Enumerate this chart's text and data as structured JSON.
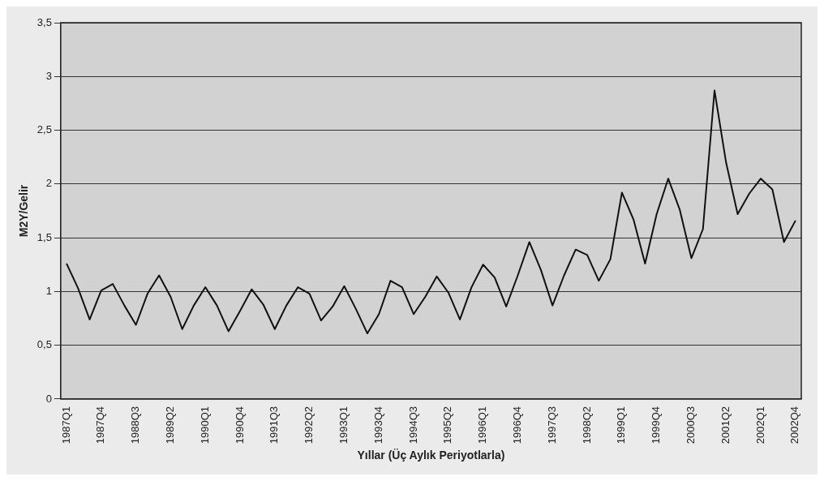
{
  "chart_data": {
    "type": "line",
    "xlabel": "Yıllar (Üç Aylık Periyotlarla)",
    "ylabel": "M2Y/Gelir",
    "categories": [
      "1987Q1",
      null,
      null,
      "1987Q4",
      null,
      null,
      "1988Q3",
      null,
      null,
      "1989Q2",
      null,
      null,
      "1990Q1",
      null,
      null,
      "1990Q4",
      null,
      null,
      "1991Q3",
      null,
      null,
      "1992Q2",
      null,
      null,
      "1993Q1",
      null,
      null,
      "1993Q4",
      null,
      null,
      "1994Q3",
      null,
      null,
      "1995Q2",
      null,
      null,
      "1996Q1",
      null,
      null,
      "1996Q4",
      null,
      null,
      "1997Q3",
      null,
      null,
      "1998Q2",
      null,
      null,
      "1999Q1",
      null,
      null,
      "1999Q4",
      null,
      null,
      "2000Q3",
      null,
      null,
      "2001Q2",
      null,
      null,
      "2002Q1",
      null,
      null,
      "2002Q4"
    ],
    "series": [
      {
        "color": "#111111",
        "values": [
          1.26,
          1.03,
          0.74,
          1.01,
          1.07,
          0.87,
          0.69,
          0.98,
          1.15,
          0.95,
          0.65,
          0.87,
          1.04,
          0.87,
          0.63,
          0.82,
          1.02,
          0.88,
          0.65,
          0.87,
          1.04,
          0.98,
          0.73,
          0.86,
          1.05,
          0.84,
          0.61,
          0.79,
          1.1,
          1.04,
          0.79,
          0.95,
          1.14,
          0.99,
          0.74,
          1.04,
          1.25,
          1.13,
          0.86,
          1.15,
          1.46,
          1.2,
          0.87,
          1.15,
          1.39,
          1.34,
          1.1,
          1.3,
          1.92,
          1.67,
          1.26,
          1.72,
          2.05,
          1.76,
          1.31,
          1.58,
          2.87,
          2.2,
          1.72,
          1.91,
          2.05,
          1.95,
          1.46,
          1.66
        ]
      }
    ],
    "ylim": [
      0,
      3.5
    ],
    "yticks": [
      0,
      {
        "value": 0.5,
        "label": "0,5"
      },
      1,
      {
        "value": 1.5,
        "label": "1,5"
      },
      2,
      {
        "value": 2.5,
        "label": "2,5"
      },
      3,
      {
        "value": 3.5,
        "label": "3,5"
      }
    ],
    "grid": "y",
    "legend": false,
    "marker": "none",
    "line_style": "solid"
  }
}
